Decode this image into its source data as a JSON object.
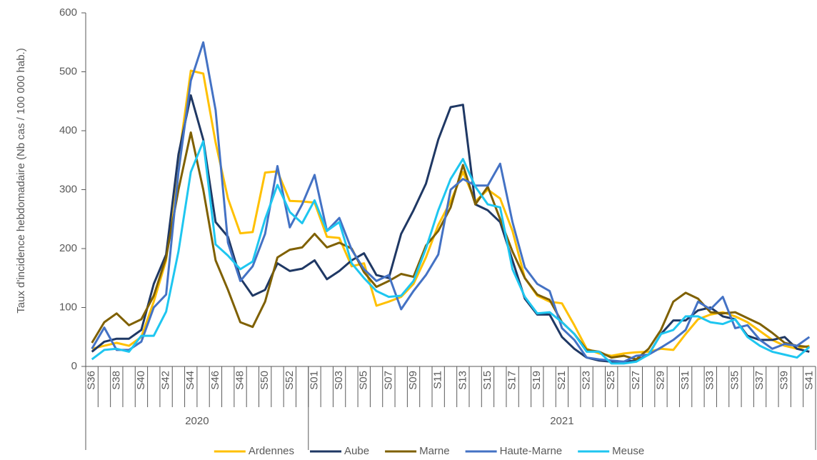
{
  "chart_data": {
    "type": "line",
    "y_label": "Taux d'incidence hebdomadaire (Nb cas / 100 000 hab.)",
    "categories": [
      "S36",
      null,
      "S38",
      null,
      "S40",
      null,
      "S42",
      null,
      "S44",
      null,
      "S46",
      null,
      "S48",
      null,
      "S50",
      null,
      "S52",
      null,
      "S01",
      null,
      "S03",
      null,
      "S05",
      null,
      "S07",
      null,
      "S09",
      null,
      "S11",
      null,
      "S13",
      null,
      "S15",
      null,
      "S17",
      null,
      "S19",
      null,
      "S21",
      null,
      "S23",
      null,
      "S25",
      null,
      "S27",
      null,
      "S29",
      null,
      "S31",
      null,
      "S33",
      null,
      "S35",
      null,
      "S37",
      null,
      "S39",
      null,
      "S41"
    ],
    "groups": [
      {
        "label": "2020",
        "span": 18
      },
      {
        "label": "2021",
        "span": 41
      }
    ],
    "ylim": [
      0,
      600
    ],
    "yticks": [
      0,
      100,
      200,
      300,
      400,
      500,
      600
    ],
    "legend": "bottom",
    "series": [
      {
        "name": "Ardennes",
        "color": "#ffc000",
        "values": [
          30,
          35,
          40,
          35,
          50,
          110,
          180,
          350,
          502,
          497,
          380,
          285,
          226,
          228,
          329,
          331,
          281,
          280,
          278,
          220,
          218,
          170,
          175,
          103,
          110,
          118,
          140,
          185,
          240,
          280,
          330,
          280,
          300,
          285,
          230,
          150,
          120,
          110,
          107,
          70,
          30,
          22,
          18,
          22,
          24,
          25,
          30,
          28,
          55,
          80,
          88,
          92,
          85,
          75,
          60,
          45,
          35,
          30,
          35
        ]
      },
      {
        "name": "Aube",
        "color": "#1f3864",
        "values": [
          25,
          42,
          47,
          47,
          62,
          140,
          190,
          360,
          460,
          385,
          245,
          220,
          150,
          120,
          130,
          175,
          162,
          166,
          180,
          148,
          162,
          180,
          192,
          155,
          150,
          225,
          265,
          310,
          385,
          440,
          444,
          275,
          265,
          245,
          180,
          115,
          88,
          88,
          50,
          30,
          15,
          10,
          8,
          8,
          10,
          20,
          55,
          78,
          78,
          95,
          100,
          85,
          80,
          52,
          45,
          45,
          50,
          30,
          25
        ]
      },
      {
        "name": "Marne",
        "color": "#7f6000",
        "values": [
          40,
          75,
          90,
          70,
          80,
          120,
          185,
          300,
          397,
          300,
          180,
          130,
          75,
          67,
          110,
          185,
          198,
          202,
          225,
          202,
          210,
          200,
          160,
          135,
          145,
          157,
          152,
          205,
          230,
          270,
          342,
          275,
          305,
          250,
          195,
          150,
          122,
          113,
          75,
          55,
          28,
          25,
          15,
          18,
          12,
          30,
          62,
          110,
          125,
          115,
          92,
          90,
          92,
          82,
          72,
          57,
          40,
          35,
          33
        ]
      },
      {
        "name": "Haute-Marne",
        "color": "#4472c4",
        "values": [
          30,
          66,
          28,
          28,
          42,
          100,
          122,
          330,
          485,
          550,
          435,
          210,
          145,
          170,
          225,
          340,
          236,
          275,
          325,
          230,
          252,
          198,
          165,
          145,
          155,
          97,
          128,
          155,
          190,
          300,
          318,
          307,
          307,
          344,
          245,
          168,
          140,
          128,
          65,
          45,
          15,
          12,
          10,
          8,
          18,
          20,
          32,
          45,
          62,
          110,
          97,
          118,
          65,
          70,
          45,
          30,
          38,
          35,
          50
        ]
      },
      {
        "name": "Meuse",
        "color": "#1ec6f0",
        "values": [
          12,
          28,
          30,
          25,
          52,
          52,
          93,
          195,
          330,
          382,
          207,
          188,
          165,
          178,
          250,
          308,
          262,
          243,
          282,
          230,
          245,
          175,
          150,
          128,
          118,
          120,
          145,
          200,
          265,
          318,
          352,
          305,
          275,
          270,
          165,
          118,
          90,
          92,
          75,
          55,
          25,
          25,
          5,
          5,
          8,
          20,
          55,
          62,
          85,
          85,
          75,
          72,
          80,
          50,
          35,
          25,
          20,
          15,
          33
        ]
      }
    ]
  }
}
